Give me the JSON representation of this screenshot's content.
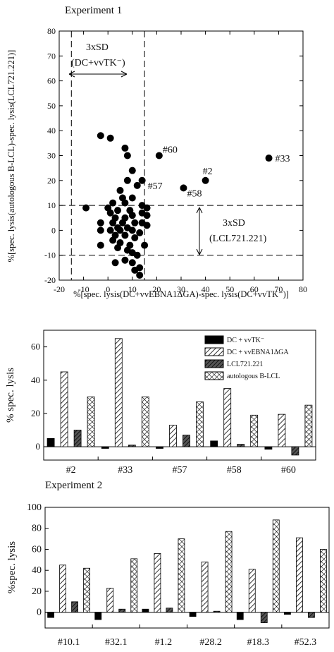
{
  "chart_data": [
    {
      "type": "scatter",
      "title": "Experiment 1",
      "xlabel": "%[spec. lysis(DC+vvEBNA1ΔGA)-spec. lysis(DC+vvTK⁻)]",
      "ylabel": "%[spec. lysis(autologous B-LCL)-spec. lysis(LCL721.221)]",
      "xlim": [
        -20,
        80
      ],
      "ylim": [
        -20,
        80
      ],
      "xticks": [
        "-20",
        "-10",
        "0",
        "10",
        "20",
        "30",
        "40",
        "50",
        "60",
        "70",
        "80"
      ],
      "yticks": [
        "-20",
        "-10",
        "0",
        "10",
        "20",
        "30",
        "40",
        "50",
        "60",
        "70",
        "80"
      ],
      "threshold_lines": {
        "x": [
          -15,
          15
        ],
        "y": [
          -10,
          10
        ]
      },
      "annotations": {
        "sd_x_line1": "3xSD",
        "sd_x_line2": "(DC+vvTK⁻)",
        "sd_y_line1": "3xSD",
        "sd_y_line2": "(LCL721.221)"
      },
      "labeled_points": [
        {
          "label": "#60",
          "x": 21,
          "y": 30
        },
        {
          "label": "#33",
          "x": 66,
          "y": 29
        },
        {
          "label": "#2",
          "x": 40,
          "y": 20
        },
        {
          "label": "#57",
          "x": 14,
          "y": 20
        },
        {
          "label": "#58",
          "x": 31,
          "y": 17
        }
      ],
      "points": [
        {
          "x": -9,
          "y": 9
        },
        {
          "x": -3,
          "y": 38
        },
        {
          "x": 1,
          "y": 37
        },
        {
          "x": 7,
          "y": 33
        },
        {
          "x": 8,
          "y": 30
        },
        {
          "x": 10,
          "y": 24
        },
        {
          "x": 8,
          "y": 20
        },
        {
          "x": 12,
          "y": 18
        },
        {
          "x": 5,
          "y": 16
        },
        {
          "x": 6,
          "y": 13
        },
        {
          "x": 10,
          "y": 13
        },
        {
          "x": 2,
          "y": 11
        },
        {
          "x": 7,
          "y": 11
        },
        {
          "x": 14,
          "y": 10
        },
        {
          "x": 16,
          "y": 9
        },
        {
          "x": 0,
          "y": 9
        },
        {
          "x": 4,
          "y": 8
        },
        {
          "x": 9,
          "y": 8
        },
        {
          "x": 14,
          "y": 7
        },
        {
          "x": 1,
          "y": 7
        },
        {
          "x": 10,
          "y": 6
        },
        {
          "x": 16,
          "y": 6
        },
        {
          "x": 3,
          "y": 5
        },
        {
          "x": 7,
          "y": 5
        },
        {
          "x": -3,
          "y": 3
        },
        {
          "x": 2,
          "y": 3
        },
        {
          "x": 6,
          "y": 3
        },
        {
          "x": 11,
          "y": 3
        },
        {
          "x": 14,
          "y": 3
        },
        {
          "x": 16,
          "y": 2
        },
        {
          "x": 4,
          "y": 1
        },
        {
          "x": 8,
          "y": 1
        },
        {
          "x": -3,
          "y": 0
        },
        {
          "x": 1,
          "y": 0
        },
        {
          "x": 5,
          "y": 0
        },
        {
          "x": 10,
          "y": 0
        },
        {
          "x": 13,
          "y": -1
        },
        {
          "x": 3,
          "y": -2
        },
        {
          "x": 7,
          "y": -2
        },
        {
          "x": 11,
          "y": -3
        },
        {
          "x": 2,
          "y": -4
        },
        {
          "x": 5,
          "y": -5
        },
        {
          "x": -3,
          "y": -6
        },
        {
          "x": 9,
          "y": -6
        },
        {
          "x": 15,
          "y": -6
        },
        {
          "x": 4,
          "y": -7
        },
        {
          "x": 8,
          "y": -8
        },
        {
          "x": 10,
          "y": -9
        },
        {
          "x": 12,
          "y": -10
        },
        {
          "x": 7,
          "y": -12
        },
        {
          "x": 3,
          "y": -13
        },
        {
          "x": 10,
          "y": -13
        },
        {
          "x": 13,
          "y": -15
        },
        {
          "x": 11,
          "y": -16
        },
        {
          "x": 13,
          "y": -18
        }
      ]
    },
    {
      "type": "bar",
      "title": "",
      "ylabel": "% spec. lysis",
      "ylim": [
        -8,
        70
      ],
      "yticks": [
        "0",
        "20",
        "40",
        "60"
      ],
      "categories": [
        "#2",
        "#33",
        "#57",
        "#58",
        "#60"
      ],
      "legend_position": "top-right",
      "series": [
        {
          "name": "DC + vvTK⁻",
          "values": [
            5,
            -1,
            -1,
            3.5,
            -1.5
          ]
        },
        {
          "name": "DC + vvEBNA1ΔGA",
          "values": [
            45,
            65,
            13,
            35,
            19.5
          ]
        },
        {
          "name": "LCL721.221",
          "values": [
            10,
            1,
            7,
            1.5,
            -5
          ]
        },
        {
          "name": "autologous B-LCL",
          "values": [
            30,
            30,
            27,
            19,
            25
          ]
        }
      ]
    },
    {
      "type": "bar",
      "title": "Experiment 2",
      "ylabel": "%spec. lysis",
      "ylim": [
        -15,
        100
      ],
      "yticks": [
        "0",
        "20",
        "40",
        "60",
        "80",
        "100"
      ],
      "categories": [
        "#10.1",
        "#32.1",
        "#1.2",
        "#28.2",
        "#18.3",
        "#52.3"
      ],
      "series": [
        {
          "name": "DC + vvTK⁻",
          "values": [
            -5,
            -7,
            3,
            -4,
            -7,
            -2
          ]
        },
        {
          "name": "DC + vvEBNA1ΔGA",
          "values": [
            45,
            23,
            56,
            48,
            41,
            71
          ]
        },
        {
          "name": "LCL721.221",
          "values": [
            10,
            3,
            4,
            1,
            -10,
            -5
          ]
        },
        {
          "name": "autologous B-LCL",
          "values": [
            42,
            51,
            70,
            77,
            88,
            60
          ]
        }
      ]
    }
  ],
  "pattern_names": [
    "solid-black",
    "diagonal-hatch",
    "dark-diagonal-hatch",
    "crosshatch"
  ]
}
